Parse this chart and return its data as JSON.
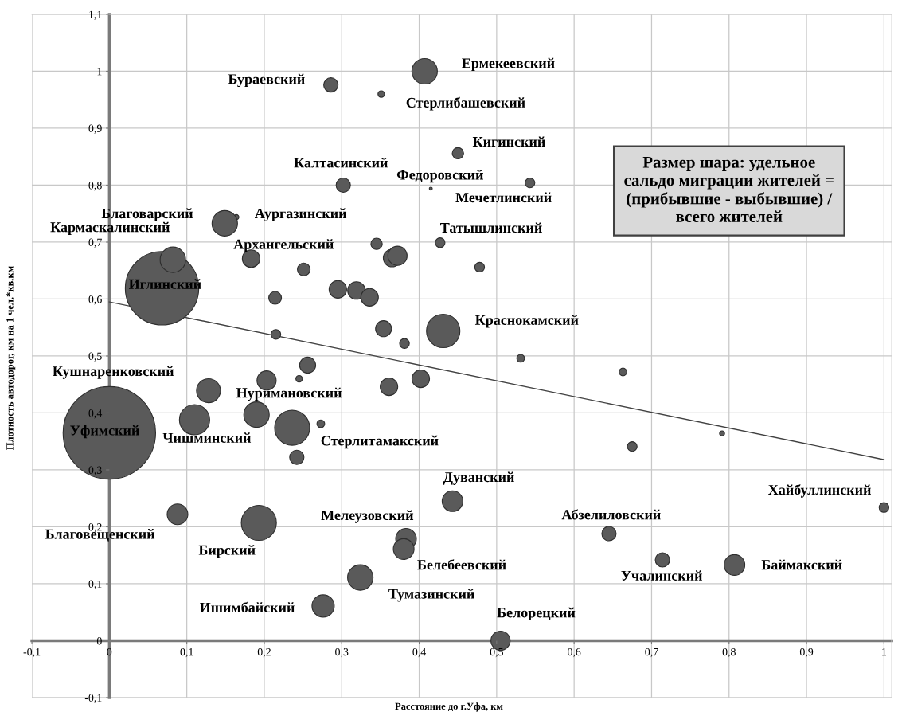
{
  "chart_data": {
    "type": "bubble",
    "xlabel": "Расстояние до г.Уфа, км",
    "ylabel": "Плотность автодорог, км на 1 чел.*кв.км",
    "xlim": [
      -0.1,
      1.01
    ],
    "ylim": [
      -0.1,
      1.1
    ],
    "xticks": [
      {
        "value": -0.1,
        "label": "-0,1"
      },
      0,
      {
        "value": 0.1,
        "label": "0,1"
      },
      {
        "value": 0.2,
        "label": "0,2"
      },
      {
        "value": 0.3,
        "label": "0,3"
      },
      {
        "value": 0.4,
        "label": "0,4"
      },
      {
        "value": 0.5,
        "label": "0,5"
      },
      {
        "value": 0.6,
        "label": "0,6"
      },
      {
        "value": 0.7,
        "label": "0,7"
      },
      {
        "value": 0.8,
        "label": "0,8"
      },
      {
        "value": 0.9,
        "label": "0,9"
      },
      1
    ],
    "yticks": [
      {
        "value": -0.1,
        "label": "-0,1"
      },
      0,
      {
        "value": 0.1,
        "label": "0,1"
      },
      {
        "value": 0.2,
        "label": "0,2"
      },
      {
        "value": 0.3,
        "label": "0,3"
      },
      {
        "value": 0.4,
        "label": "0,4"
      },
      {
        "value": 0.5,
        "label": "0,5"
      },
      {
        "value": 0.6,
        "label": "0,6"
      },
      {
        "value": 0.7,
        "label": "0,7"
      },
      {
        "value": 0.8,
        "label": "0,8"
      },
      {
        "value": 0.9,
        "label": "0,9"
      },
      1,
      {
        "value": 1.1,
        "label": "1,1"
      }
    ],
    "grid": true,
    "legend": false,
    "series": [
      {
        "type": "bubble",
        "color": "#5a5a5a",
        "x": [
          0,
          0.068,
          0.286,
          0.351,
          0.407,
          0.302,
          0.415,
          0.164,
          0.149,
          0.345,
          0.427,
          0.365,
          0.372,
          0.082,
          0.183,
          0.251,
          0.295,
          0.319,
          0.336,
          0.214,
          0.354,
          0.381,
          0.431,
          0.215,
          0.45,
          0.543,
          0.478,
          0.531,
          0.663,
          0.675,
          0.791,
          0.443,
          0.645,
          0.714,
          0.807,
          1.0,
          0.505,
          0.256,
          0.245,
          0.203,
          0.128,
          0.361,
          0.402,
          0.11,
          0.19,
          0.236,
          0.273,
          0.242,
          0.088,
          0.193,
          0.383,
          0.38,
          0.324,
          0.276
        ],
        "values": [
          0.365,
          0.619,
          0.976,
          0.96,
          1.0,
          0.8,
          0.794,
          0.744,
          0.733,
          0.697,
          0.699,
          0.672,
          0.676,
          0.669,
          0.671,
          0.652,
          0.617,
          0.615,
          0.603,
          0.602,
          0.548,
          0.522,
          0.544,
          0.538,
          0.856,
          0.804,
          0.656,
          0.496,
          0.472,
          0.341,
          0.364,
          0.245,
          0.188,
          0.142,
          0.133,
          0.234,
          0.0,
          0.484,
          0.46,
          0.457,
          0.439,
          0.446,
          0.46,
          0.388,
          0.397,
          0.374,
          0.381,
          0.322,
          0.222,
          0.207,
          0.179,
          0.161,
          0.111,
          0.061
        ],
        "sizes": [
          1,
          0.63,
          0.024,
          0.005,
          0.076,
          0.024,
          0.001,
          0.003,
          0.076,
          0.015,
          0.011,
          0.036,
          0.043,
          0.076,
          0.036,
          0.019,
          0.036,
          0.036,
          0.036,
          0.019,
          0.03,
          0.011,
          0.131,
          0.011,
          0.015,
          0.011,
          0.011,
          0.007,
          0.007,
          0.011,
          0.003,
          0.05,
          0.024,
          0.024,
          0.05,
          0.011,
          0.043,
          0.03,
          0.005,
          0.043,
          0.067,
          0.036,
          0.036,
          0.107,
          0.076,
          0.144,
          0.007,
          0.024,
          0.05,
          0.144,
          0.05,
          0.05,
          0.076,
          0.058
        ]
      },
      {
        "type": "line",
        "color": "#404040",
        "x": [
          0,
          1
        ],
        "values": [
          0.595,
          0.318
        ]
      }
    ],
    "annotations": [
      "Ермекеевский",
      "Бураевский",
      "Стерлибашевский",
      "Кигинский",
      "Калтасинский",
      "Федоровский",
      "Мечетлинский",
      "Татышлинский",
      "Благоварский",
      "Аургазинский",
      "Кармаскалинский",
      "Архангельский",
      "Иглинский",
      "Краснокамский",
      "Кушнаренковский",
      "Нуримановский",
      "Уфимский",
      "Чишминский",
      "Стерлитамакский",
      "Дуванский",
      "Хайбуллинский",
      "Абзелиловский",
      "Мелеузовский",
      "Благовещенский",
      "Бирский",
      "Белебеевский",
      "Учалинский",
      "Баймакский",
      "Тумазинский",
      "Ишимбайский",
      "Белорецкий",
      "Размер шара: удельное\nсальдо миграции жителей =\n(прибывшие - выбывшие) /\nвсего жителей"
    ]
  }
}
